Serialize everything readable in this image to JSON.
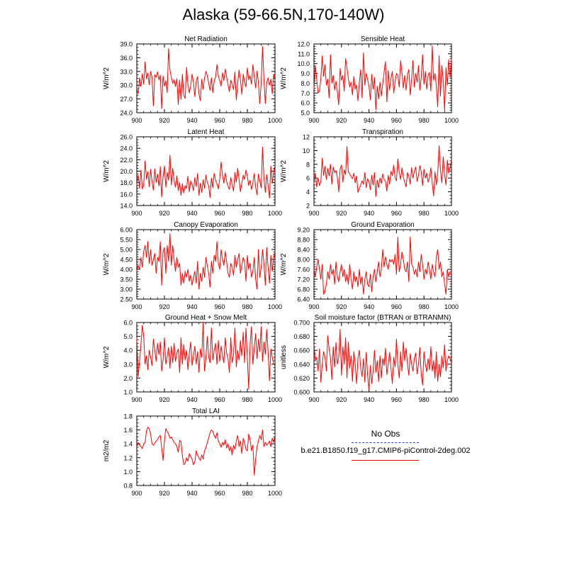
{
  "title": "Alaska (59-66.5N,170-140W)",
  "legend": {
    "entries": [
      {
        "label": "No Obs",
        "color": "#3a3ad8",
        "dash": true
      },
      {
        "label": "b.e21.B1850.f19_g17.CMIP6-piControl-2deg.002",
        "color": "#e00000",
        "dash": false
      }
    ]
  },
  "chart_data": [
    {
      "type": "line",
      "title": "Net Radiation",
      "ylabel": "W/m^2",
      "xlim": [
        900,
        1000
      ],
      "ylim": [
        24,
        39
      ],
      "xticks": [
        900,
        920,
        940,
        960,
        980,
        1000
      ],
      "yticks": [
        "24.0",
        "27.0",
        "30.0",
        "33.0",
        "36.0",
        "39.0"
      ],
      "color": "#ff0000",
      "values": [
        29.3,
        28.1,
        31.6,
        29.7,
        32.5,
        30.2,
        35.1,
        31.4,
        32.6,
        30.1,
        33.0,
        31.7,
        25.5,
        32.3,
        31.8,
        32.9,
        31.2,
        32.2,
        24.9,
        32.0,
        29.8,
        31.0,
        28.4,
        38.0,
        33.3,
        31.7,
        30.4,
        31.2,
        29.7,
        31.4,
        25.8,
        31.1,
        26.9,
        32.4,
        27.8,
        27.1,
        33.9,
        30.2,
        28.3,
        30.0,
        32.4,
        30.6,
        27.5,
        30.9,
        31.9,
        28.1,
        26.6,
        31.3,
        29.1,
        31.5,
        33.0,
        32.1,
        30.5,
        28.9,
        31.6,
        28.4,
        30.9,
        31.8,
        34.5,
        32.0,
        31.0,
        29.8,
        32.7,
        31.0,
        33.5,
        31.8,
        30.1,
        28.6,
        31.1,
        30.2,
        29.0,
        32.9,
        26.8,
        30.4,
        33.3,
        31.2,
        28.0,
        32.4,
        30.7,
        29.6,
        33.8,
        31.2,
        32.0,
        30.2,
        34.5,
        31.7,
        29.4,
        33.1,
        30.6,
        26.0,
        30.5,
        38.4,
        31.3,
        26.0,
        30.6,
        31.6,
        30.0,
        31.3,
        28.1,
        32.4,
        31.0
      ]
    },
    {
      "type": "line",
      "title": "Sensible Heat",
      "ylabel": "W/m^2",
      "xlim": [
        900,
        1000
      ],
      "ylim": [
        5,
        12
      ],
      "xticks": [
        900,
        920,
        940,
        960,
        980,
        1000
      ],
      "yticks": [
        "5.0",
        "6.0",
        "7.0",
        "8.0",
        "9.0",
        "10.0",
        "11.0",
        "12.0"
      ],
      "color": "#ff0000",
      "values": [
        7.4,
        9.8,
        8.4,
        7.0,
        7.2,
        8.5,
        10.8,
        8.7,
        9.9,
        7.8,
        8.4,
        6.5,
        10.9,
        8.0,
        8.8,
        7.3,
        8.2,
        7.1,
        5.8,
        9.5,
        8.3,
        8.8,
        7.2,
        10.5,
        9.6,
        8.5,
        7.6,
        8.1,
        6.8,
        8.7,
        7.4,
        7.8,
        6.2,
        8.1,
        9.4,
        6.5,
        11.1,
        7.8,
        9.0,
        8.4,
        7.7,
        6.3,
        8.9,
        7.4,
        8.6,
        5.3,
        7.7,
        6.4,
        8.1,
        6.7,
        7.9,
        9.1,
        10.2,
        6.1,
        9.3,
        7.3,
        8.5,
        9.2,
        7.0,
        8.1,
        9.0,
        8.8,
        7.6,
        10.3,
        9.1,
        7.5,
        8.8,
        7.3,
        8.9,
        9.4,
        6.8,
        8.4,
        10.3,
        7.6,
        9.0,
        8.1,
        9.8,
        7.3,
        8.6,
        10.9,
        7.9,
        9.2,
        7.4,
        8.8,
        9.1,
        7.2,
        11.8,
        8.3,
        9.0,
        7.7,
        5.6,
        10.8,
        6.7,
        9.8,
        8.3,
        5.2,
        9.6,
        7.8,
        10.4,
        8.6,
        10.5
      ]
    },
    {
      "type": "line",
      "title": "Latent Heat",
      "ylabel": "W/m^2",
      "xlim": [
        900,
        1000
      ],
      "ylim": [
        14,
        26
      ],
      "xticks": [
        900,
        920,
        940,
        960,
        980,
        1000
      ],
      "yticks": [
        "14.0",
        "16.0",
        "18.0",
        "20.0",
        "22.0",
        "24.0",
        "26.0"
      ],
      "color": "#ff0000",
      "values": [
        17.6,
        19.3,
        17.0,
        20.2,
        16.9,
        17.5,
        21.8,
        18.6,
        19.9,
        17.3,
        20.3,
        18.2,
        16.7,
        20.4,
        18.0,
        19.5,
        17.4,
        20.8,
        15.5,
        19.0,
        20.9,
        17.2,
        19.8,
        18.4,
        22.8,
        17.6,
        20.5,
        18.3,
        17.2,
        19.2,
        16.6,
        18.0,
        15.8,
        17.8,
        16.2,
        17.5,
        17.0,
        19.1,
        16.4,
        18.3,
        17.7,
        16.6,
        18.9,
        17.3,
        19.6,
        15.8,
        17.9,
        16.3,
        18.5,
        17.0,
        19.3,
        18.0,
        17.5,
        15.4,
        18.8,
        17.1,
        19.6,
        18.4,
        17.8,
        16.9,
        18.6,
        21.6,
        19.3,
        17.9,
        19.7,
        18.2,
        17.4,
        16.8,
        18.9,
        17.7,
        16.5,
        19.8,
        18.1,
        20.5,
        18.6,
        16.4,
        17.9,
        19.3,
        18.6,
        20.2,
        19.1,
        17.5,
        18.4,
        16.8,
        18.0,
        19.6,
        17.2,
        15.9,
        19.5,
        18.3,
        17.1,
        24.2,
        18.8,
        16.3,
        19.4,
        17.6,
        15.3,
        20.9,
        17.9,
        19.8,
        21.0
      ]
    },
    {
      "type": "line",
      "title": "Transpiration",
      "ylabel": "W/m^2",
      "xlim": [
        900,
        1000
      ],
      "ylim": [
        2,
        12
      ],
      "xticks": [
        900,
        920,
        940,
        960,
        980,
        1000
      ],
      "yticks": [
        "2",
        "4",
        "6",
        "8",
        "10",
        "12"
      ],
      "color": "#ff0000",
      "values": [
        5.2,
        6.7,
        4.7,
        6.0,
        4.9,
        5.5,
        8.9,
        6.4,
        7.7,
        5.8,
        7.4,
        6.3,
        8.0,
        5.1,
        7.6,
        6.8,
        7.1,
        6.1,
        4.0,
        7.3,
        7.9,
        5.4,
        7.2,
        6.5,
        10.6,
        6.9,
        6.6,
        6.2,
        5.9,
        6.7,
        5.3,
        6.3,
        3.9,
        4.5,
        5.0,
        5.6,
        5.1,
        6.8,
        4.6,
        5.9,
        5.5,
        4.3,
        6.4,
        5.0,
        6.8,
        3.3,
        5.7,
        4.6,
        6.0,
        5.2,
        6.6,
        5.8,
        5.5,
        4.1,
        6.4,
        5.1,
        7.0,
        6.3,
        7.9,
        6.0,
        5.6,
        8.8,
        6.9,
        5.8,
        7.5,
        6.1,
        5.4,
        4.7,
        6.8,
        6.3,
        5.1,
        7.5,
        6.0,
        7.0,
        7.6,
        5.5,
        6.4,
        7.8,
        6.9,
        4.9,
        7.3,
        6.0,
        6.7,
        5.4,
        6.0,
        7.5,
        5.2,
        3.4,
        6.9,
        5.0,
        6.7,
        10.7,
        7.2,
        5.3,
        9.1,
        6.6,
        5.0,
        8.6,
        6.7,
        7.6,
        8.5
      ]
    },
    {
      "type": "line",
      "title": "Canopy Evaporation",
      "ylabel": "W/m^2",
      "xlim": [
        900,
        1000
      ],
      "ylim": [
        2.5,
        6
      ],
      "xticks": [
        900,
        920,
        940,
        960,
        980,
        1000
      ],
      "yticks": [
        "2.50",
        "3.00",
        "3.50",
        "4.00",
        "4.50",
        "5.00",
        "5.50",
        "6.00"
      ],
      "color": "#ff0000",
      "values": [
        3.9,
        4.2,
        4.0,
        4.6,
        4.1,
        4.9,
        5.2,
        4.6,
        5.4,
        4.3,
        5.0,
        4.2,
        4.5,
        4.8,
        3.8,
        4.6,
        4.4,
        5.4,
        3.2,
        4.9,
        5.1,
        3.8,
        5.2,
        4.4,
        5.8,
        4.2,
        5.2,
        4.5,
        3.9,
        4.6,
        4.1,
        4.3,
        3.2,
        3.8,
        3.3,
        3.9,
        3.6,
        4.0,
        3.4,
        3.7,
        3.2,
        3.6,
        3.9,
        3.3,
        4.4,
        3.0,
        3.8,
        3.4,
        4.1,
        3.6,
        4.6,
        4.2,
        3.8,
        3.1,
        4.4,
        3.8,
        4.7,
        4.4,
        5.4,
        4.3,
        4.0,
        5.0,
        4.5,
        4.2,
        4.9,
        4.4,
        3.8,
        3.6,
        4.3,
        4.1,
        3.7,
        4.7,
        4.1,
        4.5,
        4.8,
        3.8,
        4.2,
        4.6,
        4.4,
        3.4,
        4.7,
        4.0,
        4.3,
        3.6,
        3.9,
        4.6,
        3.5,
        3.0,
        5.0,
        3.6,
        4.1,
        5.0,
        4.3,
        3.2,
        5.1,
        4.1,
        3.3,
        4.7,
        3.9,
        4.6,
        4.9
      ]
    },
    {
      "type": "line",
      "title": "Ground Evaporation",
      "ylabel": "W/m^2",
      "xlim": [
        900,
        1000
      ],
      "ylim": [
        6.4,
        9.2
      ],
      "xticks": [
        900,
        920,
        940,
        960,
        980,
        1000
      ],
      "yticks": [
        "6.40",
        "6.80",
        "7.20",
        "7.60",
        "8.00",
        "8.40",
        "8.80",
        "9.20"
      ],
      "color": "#ff0000",
      "values": [
        7.6,
        7.3,
        7.7,
        8.0,
        7.6,
        7.2,
        7.8,
        6.6,
        6.7,
        7.0,
        7.5,
        7.2,
        7.8,
        7.4,
        7.6,
        7.0,
        7.9,
        7.3,
        7.1,
        7.5,
        7.8,
        7.3,
        7.6,
        7.1,
        7.4,
        7.0,
        7.8,
        7.2,
        6.8,
        7.5,
        7.1,
        7.3,
        6.9,
        7.6,
        7.0,
        7.3,
        6.6,
        7.2,
        7.5,
        7.0,
        6.9,
        7.4,
        6.7,
        7.3,
        7.6,
        7.1,
        7.5,
        7.9,
        7.3,
        7.6,
        8.4,
        7.7,
        8.1,
        7.8,
        7.6,
        8.0,
        7.9,
        8.0,
        7.8,
        8.2,
        7.4,
        8.9,
        7.5,
        7.8,
        8.3,
        8.0,
        7.6,
        7.5,
        7.9,
        7.1,
        8.9,
        7.8,
        7.7,
        7.4,
        7.6,
        7.3,
        7.9,
        7.5,
        8.2,
        7.8,
        7.2,
        7.6,
        7.4,
        7.9,
        7.6,
        7.2,
        7.8,
        7.5,
        7.3,
        8.1,
        8.4,
        7.6,
        7.9,
        7.3,
        7.5,
        7.0,
        6.6,
        7.6,
        7.3,
        7.5,
        7.5
      ]
    },
    {
      "type": "line",
      "title": "Ground Heat + Snow Melt",
      "ylabel": "W/m^2",
      "xlim": [
        900,
        1000
      ],
      "ylim": [
        1,
        6
      ],
      "xticks": [
        900,
        920,
        940,
        960,
        980,
        1000
      ],
      "yticks": [
        "1.0",
        "2.0",
        "3.0",
        "4.0",
        "5.0",
        "6.0"
      ],
      "color": "#ff0000",
      "values": [
        4.9,
        2.1,
        3.2,
        4.4,
        5.8,
        5.0,
        3.0,
        3.6,
        2.6,
        4.0,
        3.5,
        2.9,
        4.8,
        4.0,
        3.2,
        4.5,
        3.7,
        4.6,
        2.5,
        3.3,
        4.9,
        3.0,
        3.6,
        4.2,
        2.7,
        4.3,
        3.1,
        4.5,
        3.2,
        3.8,
        4.1,
        2.4,
        4.9,
        3.0,
        4.4,
        3.3,
        4.0,
        2.6,
        3.8,
        4.6,
        2.9,
        3.6,
        4.3,
        3.0,
        3.9,
        2.4,
        4.1,
        3.5,
        6.0,
        2.5,
        3.4,
        5.0,
        3.5,
        3.1,
        5.6,
        3.3,
        4.0,
        4.5,
        3.0,
        4.7,
        3.2,
        4.3,
        3.6,
        3.1,
        4.9,
        3.8,
        3.4,
        2.4,
        4.9,
        3.1,
        3.7,
        5.6,
        2.8,
        4.0,
        3.3,
        4.7,
        3.6,
        5.3,
        3.1,
        5.6,
        3.4,
        1.2,
        4.5,
        5.7,
        3.0,
        4.2,
        5.2,
        3.4,
        4.8,
        3.9,
        5.7,
        3.2,
        4.6,
        3.7,
        5.5,
        3.9,
        1.8,
        4.1,
        3.5,
        3.0,
        2.9
      ]
    },
    {
      "type": "line",
      "title": "Soil moisture factor (BTRAN or BTRANMN)",
      "ylabel": "unitless",
      "xlim": [
        900,
        1000
      ],
      "ylim": [
        0.6,
        0.7
      ],
      "xticks": [
        900,
        920,
        940,
        960,
        980,
        1000
      ],
      "yticks": [
        "0.600",
        "0.620",
        "0.640",
        "0.660",
        "0.680",
        "0.700"
      ],
      "color": "#ff0000",
      "values": [
        0.668,
        0.645,
        0.65,
        0.63,
        0.662,
        0.614,
        0.64,
        0.658,
        0.65,
        0.63,
        0.681,
        0.662,
        0.649,
        0.618,
        0.665,
        0.636,
        0.671,
        0.64,
        0.65,
        0.69,
        0.624,
        0.665,
        0.64,
        0.678,
        0.62,
        0.672,
        0.634,
        0.652,
        0.615,
        0.658,
        0.64,
        0.612,
        0.649,
        0.66,
        0.634,
        0.622,
        0.648,
        0.614,
        0.657,
        0.625,
        0.603,
        0.638,
        0.612,
        0.63,
        0.66,
        0.628,
        0.645,
        0.615,
        0.652,
        0.62,
        0.648,
        0.638,
        0.663,
        0.625,
        0.64,
        0.657,
        0.634,
        0.612,
        0.65,
        0.636,
        0.676,
        0.64,
        0.62,
        0.658,
        0.63,
        0.672,
        0.645,
        0.663,
        0.64,
        0.624,
        0.655,
        0.64,
        0.63,
        0.648,
        0.656,
        0.626,
        0.64,
        0.664,
        0.625,
        0.61,
        0.658,
        0.64,
        0.629,
        0.648,
        0.632,
        0.665,
        0.63,
        0.645,
        0.62,
        0.658,
        0.615,
        0.64,
        0.622,
        0.652,
        0.635,
        0.668,
        0.63,
        0.645,
        0.652,
        0.648,
        0.642
      ]
    },
    {
      "type": "line",
      "title": "Total LAI",
      "ylabel": "m2/m2",
      "xlim": [
        900,
        1000
      ],
      "ylim": [
        0.8,
        1.8
      ],
      "xticks": [
        900,
        920,
        940,
        960,
        980,
        1000
      ],
      "yticks": [
        "0.8",
        "1.0",
        "1.2",
        "1.4",
        "1.6",
        "1.8"
      ],
      "color": "#ff0000",
      "values": [
        1.35,
        1.42,
        1.38,
        1.36,
        1.33,
        1.4,
        1.42,
        1.58,
        1.64,
        1.62,
        1.54,
        1.4,
        1.38,
        1.41,
        1.44,
        1.46,
        1.5,
        1.52,
        1.34,
        1.16,
        1.44,
        1.62,
        1.58,
        1.54,
        1.48,
        1.5,
        1.46,
        1.42,
        1.4,
        1.36,
        1.28,
        1.45,
        1.43,
        1.22,
        1.1,
        1.12,
        1.2,
        1.15,
        1.26,
        1.22,
        1.18,
        1.1,
        1.14,
        1.3,
        1.24,
        1.2,
        1.16,
        1.24,
        1.18,
        1.3,
        1.34,
        1.42,
        1.48,
        1.56,
        1.6,
        1.58,
        1.52,
        1.48,
        1.56,
        1.44,
        1.4,
        1.35,
        1.42,
        1.38,
        1.46,
        1.34,
        1.4,
        1.3,
        1.36,
        1.24,
        1.38,
        1.32,
        1.44,
        1.52,
        1.36,
        1.44,
        1.26,
        1.48,
        1.42,
        1.32,
        1.3,
        1.54,
        1.46,
        1.3,
        1.38,
        0.95,
        1.18,
        1.36,
        1.44,
        1.52,
        1.46,
        1.6,
        1.36,
        1.42,
        1.38,
        1.4,
        1.44,
        1.36,
        1.48,
        1.42,
        1.52
      ]
    }
  ]
}
